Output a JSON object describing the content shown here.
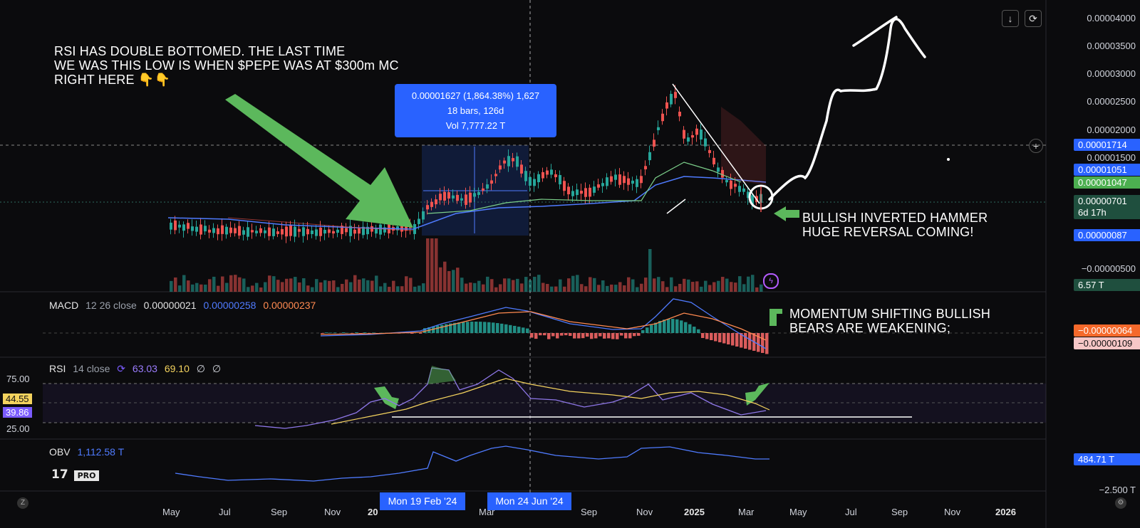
{
  "chart_data": {
    "type": "candlestick",
    "symbol_note": "$PEPE",
    "y_axis_ticks": [
      "0.00004000",
      "0.00003500",
      "0.00003000",
      "0.00002500",
      "0.00002000",
      "0.00001500",
      "−0.00000500"
    ],
    "x_axis_ticks": [
      "May",
      "Jul",
      "Sep",
      "Nov",
      "20",
      "Mar",
      "May",
      "Sep",
      "Nov",
      "2025",
      "Mar",
      "May",
      "Jul",
      "Sep",
      "Nov",
      "2026"
    ],
    "x_axis_bold": [
      "20",
      "2025",
      "2026"
    ],
    "price_tags": [
      {
        "label": "0.00001714",
        "color": "#2962ff"
      },
      {
        "label": "0.00001051",
        "color": "#2962ff"
      },
      {
        "label": "0.00001047",
        "color": "#4caf50"
      },
      {
        "label": "0.00000701",
        "sub": "6d 17h",
        "color": "#1f4f3e"
      },
      {
        "label": "0.00000087",
        "color": "#2962ff"
      },
      {
        "label": "6.57 T",
        "color": "#1f4f3e"
      }
    ],
    "macd": {
      "label": "MACD",
      "params": "12 26 close",
      "values": [
        "0.00000021",
        "0.00000258",
        "0.00000237"
      ],
      "tags": [
        "−0.00000064",
        "−0.00000109"
      ]
    },
    "rsi": {
      "label": "RSI",
      "params": "14 close",
      "values": [
        "63.03",
        "69.10",
        "∅",
        "∅"
      ],
      "levels": [
        "75.00",
        "44.55",
        "39.86",
        "25.00"
      ]
    },
    "obv": {
      "label": "OBV",
      "value": "1,112.58 T",
      "tag": "484.71 T",
      "lower_tick": "−2.500 T"
    },
    "measure": {
      "line1": "0.00001627 (1,864.38%) 1,627",
      "line2": "18 bars, 126d",
      "line3": "Vol 7,777.22 T"
    },
    "crosshair_dates": [
      "Mon 19 Feb '24",
      "Mon 24 Jun '24"
    ],
    "annotations": {
      "top_left": [
        "RSI HAS DOUBLE BOTTOMED. THE LAST TIME",
        "WE WAS THIS LOW IS WHEN $PEPE WAS AT $300m MC",
        "RIGHT HERE 👇👇"
      ],
      "hammer": [
        "BULLISH INVERTED HAMMER",
        "HUGE REVERSAL COMING!"
      ],
      "momentum": [
        "MOMENTUM SHIFTING BULLISH",
        "BEARS ARE WEAKENING;"
      ]
    },
    "badge": "PRO",
    "colors": {
      "up": "#26a69a",
      "down": "#ef5350",
      "arrow": "#5cb85c",
      "accent": "#2962ff",
      "background": "#0b0b0d"
    }
  }
}
